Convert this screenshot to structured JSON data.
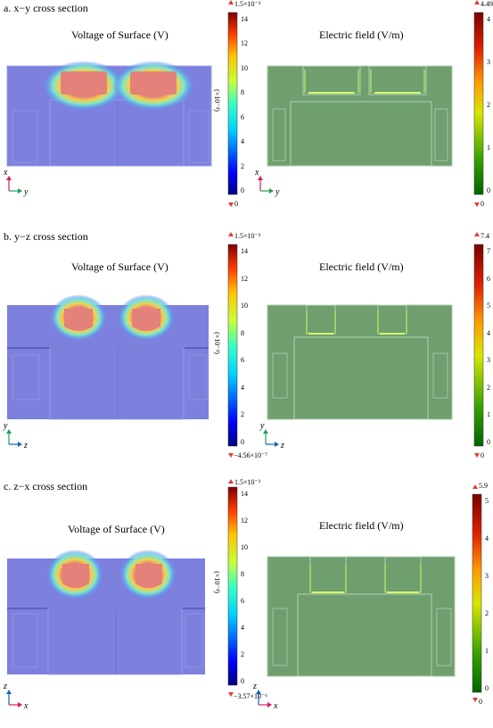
{
  "panels": [
    {
      "section_title": "a. x−y cross section",
      "voltage_title": "Voltage of Surface (V)",
      "field_title": "Electric field (V/m)",
      "voltage_colorbar": {
        "max_label": "1.5×10⁻³",
        "min_label": "0",
        "scale_label": "(×10⁻⁴)",
        "ticks": [
          "14",
          "12",
          "10",
          "8",
          "6",
          "4",
          "2",
          "0"
        ]
      },
      "field_colorbar": {
        "max_label": "4.49",
        "min_label": "0",
        "ticks": [
          "4",
          "3",
          "2",
          "1",
          "0"
        ]
      },
      "axes": {
        "vertical": "x",
        "horizontal": "y"
      },
      "colors": {
        "vertical_axis": "#d81b60",
        "horizontal_axis": "#1fa055"
      }
    },
    {
      "section_title": "b. y−z cross section",
      "voltage_title": "Voltage of Surface (V)",
      "field_title": "Electric field (V/m)",
      "voltage_colorbar": {
        "max_label": "1.5×10⁻³",
        "min_label": "−4.56×10⁻⁷",
        "scale_label": "(×10⁻⁴)",
        "ticks": [
          "14",
          "12",
          "10",
          "8",
          "6",
          "4",
          "2",
          "0"
        ]
      },
      "field_colorbar": {
        "max_label": "7.4",
        "min_label": "0",
        "ticks": [
          "7",
          "6",
          "5",
          "4",
          "3",
          "2",
          "1",
          "0"
        ]
      },
      "axes": {
        "vertical": "y",
        "horizontal": "z"
      },
      "colors": {
        "vertical_axis": "#1fa055",
        "horizontal_axis": "#1565c0"
      }
    },
    {
      "section_title": "c. z−x cross section",
      "voltage_title": "Voltage of Surface (V)",
      "field_title": "Electric field (V/m)",
      "voltage_colorbar": {
        "max_label": "1.5×10⁻³",
        "min_label": "−3.57×10⁻⁶",
        "scale_label": "(×10⁻⁴)",
        "ticks": [
          "14",
          "12",
          "10",
          "8",
          "6",
          "4",
          "2",
          "0"
        ]
      },
      "field_colorbar": {
        "max_label": "5.9",
        "min_label": "0",
        "ticks": [
          "5",
          "4",
          "3",
          "2",
          "1",
          "0"
        ]
      },
      "axes": {
        "vertical": "z",
        "horizontal": "x"
      },
      "colors": {
        "vertical_axis": "#1565c0",
        "horizontal_axis": "#d81b60"
      }
    }
  ]
}
